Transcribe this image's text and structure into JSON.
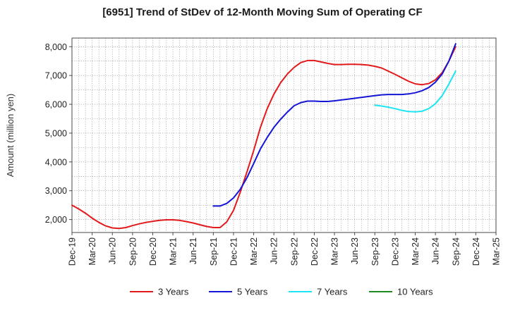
{
  "chart_data": {
    "type": "line",
    "title": "[6951]  Trend of StDev of 12-Month Moving Sum of Operating CF",
    "ylabel": "Amount (million yen)",
    "xlabel": "",
    "x_ticks": [
      "Dec-19",
      "Mar-20",
      "Jun-20",
      "Sep-20",
      "Dec-20",
      "Mar-21",
      "Jun-21",
      "Sep-21",
      "Dec-21",
      "Mar-22",
      "Jun-22",
      "Sep-22",
      "Dec-22",
      "Mar-23",
      "Jun-23",
      "Sep-23",
      "Dec-23",
      "Mar-24",
      "Jun-24",
      "Sep-24",
      "Dec-24",
      "Mar-25"
    ],
    "y_ticks": [
      "2,000",
      "3,000",
      "4,000",
      "5,000",
      "6,000",
      "7,000",
      "8,000"
    ],
    "ylim": [
      1550,
      8300
    ],
    "grid": true,
    "legend_position": "bottom",
    "series": [
      {
        "name": "3 Years",
        "color": "#e31a1c",
        "x": [
          "Dec-19",
          "Jan-20",
          "Feb-20",
          "Mar-20",
          "Apr-20",
          "May-20",
          "Jun-20",
          "Jul-20",
          "Aug-20",
          "Sep-20",
          "Oct-20",
          "Nov-20",
          "Dec-20",
          "Jan-21",
          "Feb-21",
          "Mar-21",
          "Apr-21",
          "May-21",
          "Jun-21",
          "Jul-21",
          "Aug-21",
          "Sep-21",
          "Oct-21",
          "Nov-21",
          "Dec-21",
          "Jan-22",
          "Feb-22",
          "Mar-22",
          "Apr-22",
          "May-22",
          "Jun-22",
          "Jul-22",
          "Aug-22",
          "Sep-22",
          "Oct-22",
          "Nov-22",
          "Dec-22",
          "Jan-23",
          "Feb-23",
          "Mar-23",
          "Apr-23",
          "May-23",
          "Jun-23",
          "Jul-23",
          "Aug-23",
          "Sep-23",
          "Oct-23",
          "Nov-23",
          "Dec-23",
          "Jan-24",
          "Feb-24",
          "Mar-24",
          "Apr-24",
          "May-24",
          "Jun-24",
          "Jul-24",
          "Aug-24",
          "Sep-24"
        ],
        "values": [
          2500,
          2370,
          2220,
          2050,
          1900,
          1780,
          1710,
          1690,
          1720,
          1790,
          1850,
          1900,
          1940,
          1970,
          1990,
          1990,
          1970,
          1930,
          1880,
          1820,
          1760,
          1720,
          1720,
          1920,
          2320,
          2950,
          3650,
          4400,
          5200,
          5850,
          6350,
          6750,
          7050,
          7280,
          7450,
          7520,
          7520,
          7470,
          7420,
          7380,
          7380,
          7390,
          7390,
          7380,
          7360,
          7320,
          7260,
          7150,
          7040,
          6920,
          6800,
          6710,
          6680,
          6720,
          6850,
          7100,
          7500,
          8000
        ]
      },
      {
        "name": "5 Years",
        "color": "#1515d6",
        "x": [
          "Sep-21",
          "Oct-21",
          "Nov-21",
          "Dec-21",
          "Jan-22",
          "Feb-22",
          "Mar-22",
          "Apr-22",
          "May-22",
          "Jun-22",
          "Jul-22",
          "Aug-22",
          "Sep-22",
          "Oct-22",
          "Nov-22",
          "Dec-22",
          "Jan-23",
          "Feb-23",
          "Mar-23",
          "Apr-23",
          "May-23",
          "Jun-23",
          "Jul-23",
          "Aug-23",
          "Sep-23",
          "Oct-23",
          "Nov-23",
          "Dec-23",
          "Jan-24",
          "Feb-24",
          "Mar-24",
          "Apr-24",
          "May-24",
          "Jun-24",
          "Jul-24",
          "Aug-24",
          "Sep-24"
        ],
        "values": [
          2470,
          2470,
          2560,
          2750,
          3050,
          3450,
          3950,
          4450,
          4850,
          5200,
          5480,
          5730,
          5950,
          6060,
          6110,
          6110,
          6100,
          6100,
          6120,
          6150,
          6180,
          6210,
          6240,
          6270,
          6300,
          6330,
          6340,
          6340,
          6340,
          6360,
          6400,
          6470,
          6580,
          6770,
          7050,
          7500,
          8100
        ]
      },
      {
        "name": "7 Years",
        "color": "#1ee6f0",
        "x": [
          "Sep-23",
          "Oct-23",
          "Nov-23",
          "Dec-23",
          "Jan-24",
          "Feb-24",
          "Mar-24",
          "Apr-24",
          "May-24",
          "Jun-24",
          "Jul-24",
          "Aug-24",
          "Sep-24"
        ],
        "values": [
          5970,
          5940,
          5900,
          5850,
          5790,
          5750,
          5740,
          5760,
          5850,
          6020,
          6300,
          6700,
          7150
        ]
      },
      {
        "name": "10 Years",
        "color": "#1f8a1f",
        "x": [],
        "values": []
      }
    ]
  }
}
